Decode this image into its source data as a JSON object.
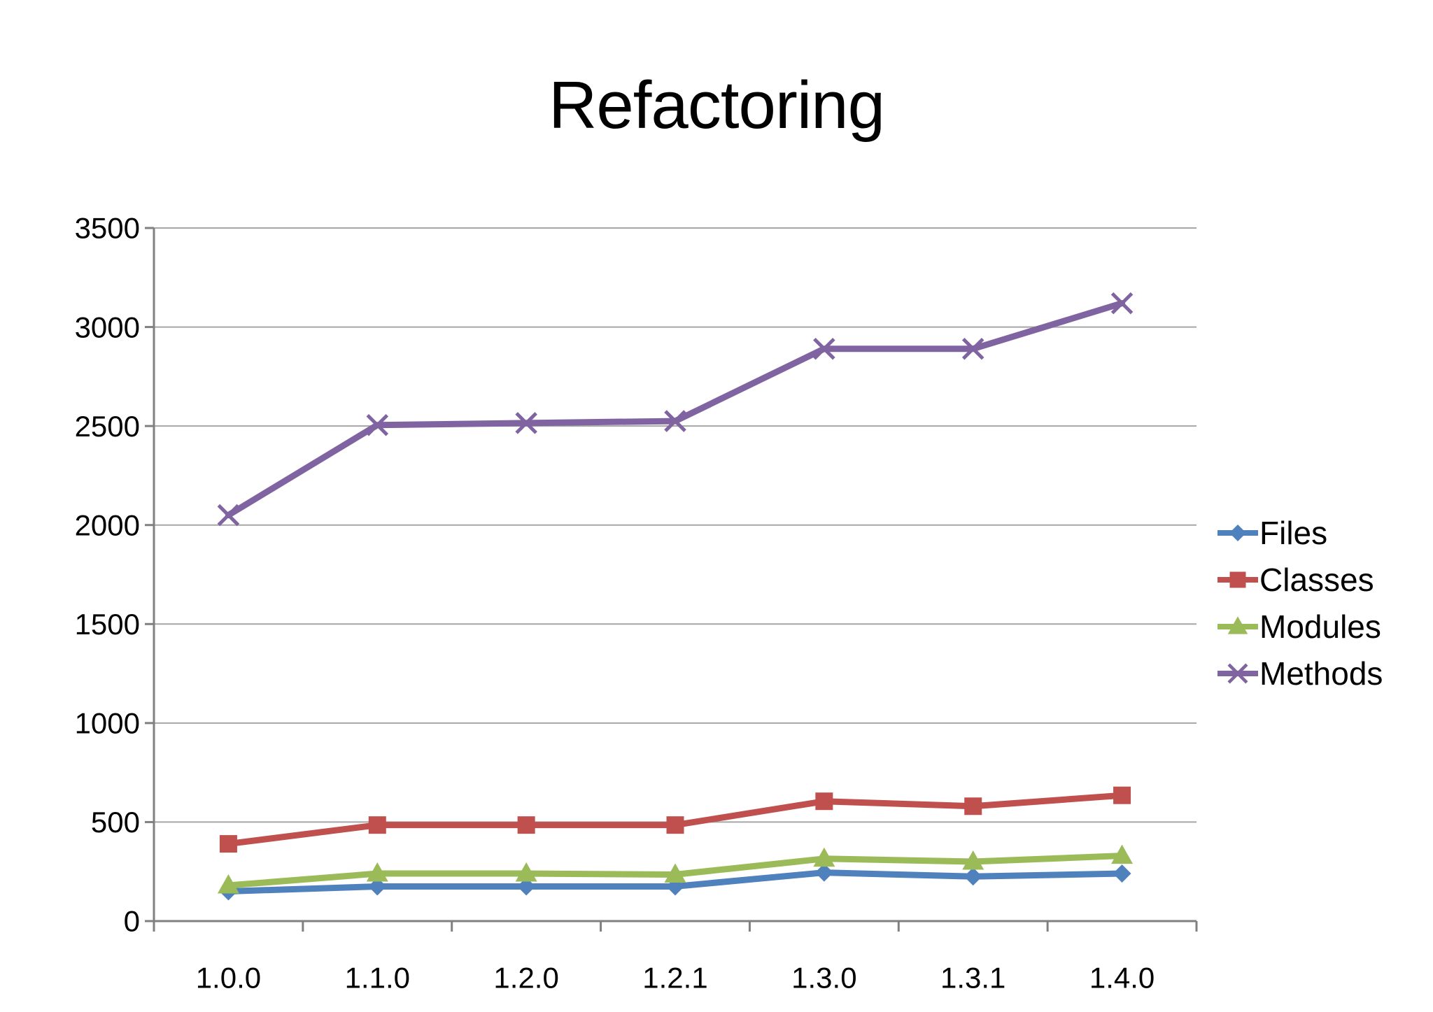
{
  "chart_data": {
    "type": "line",
    "title": "Refactoring",
    "categories": [
      "1.0.0",
      "1.1.0",
      "1.2.0",
      "1.2.1",
      "1.3.0",
      "1.3.1",
      "1.4.0"
    ],
    "series": [
      {
        "name": "Files",
        "color": "#4F81BD",
        "marker": "diamond",
        "values": [
          150,
          175,
          175,
          175,
          245,
          225,
          240
        ]
      },
      {
        "name": "Classes",
        "color": "#C0504D",
        "marker": "square",
        "values": [
          390,
          485,
          485,
          485,
          605,
          580,
          635
        ]
      },
      {
        "name": "Modules",
        "color": "#9BBB59",
        "marker": "triangle",
        "values": [
          180,
          240,
          240,
          235,
          315,
          300,
          330
        ]
      },
      {
        "name": "Methods",
        "color": "#8064A2",
        "marker": "x",
        "values": [
          2050,
          2505,
          2515,
          2525,
          2890,
          2890,
          3120
        ]
      }
    ],
    "xlabel": "",
    "ylabel": "",
    "ylim": [
      0,
      3500
    ],
    "ytick_step": 500,
    "y_tick_labels": [
      "0",
      "500",
      "1000",
      "1500",
      "2000",
      "2500",
      "3000",
      "3500"
    ],
    "grid": true,
    "legend_position": "right",
    "axis_color": "#808080",
    "gridline_color": "#A6A6A6",
    "text_color": "#000000",
    "background": "#FFFFFF"
  }
}
